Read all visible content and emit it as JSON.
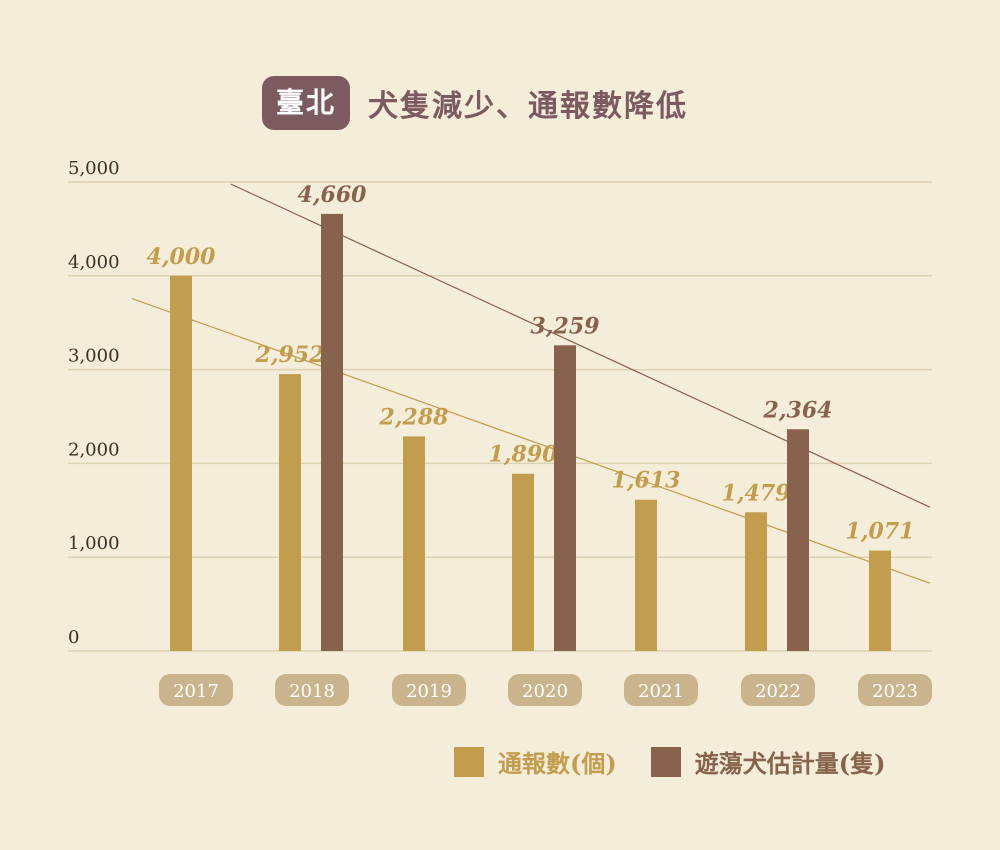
{
  "header": {
    "badge": "臺北",
    "title": "犬隻減少、通報數降低"
  },
  "colors": {
    "report": "#c29d4e",
    "stray": "#87624d",
    "grid": "#ddd2b3",
    "axis_text": "#3a3128",
    "year_pill": "#c9b48d"
  },
  "chart_data": {
    "type": "bar",
    "categories": [
      "2017",
      "2018",
      "2019",
      "2020",
      "2021",
      "2022",
      "2023"
    ],
    "ylim": [
      0,
      5000
    ],
    "yticks": [
      "0",
      "1,000",
      "2,000",
      "3,000",
      "4,000",
      "5,000"
    ],
    "series": [
      {
        "name": "通報數(個)",
        "values": [
          4000,
          2952,
          2288,
          1890,
          1613,
          1479,
          1071
        ],
        "labels": [
          "4,000",
          "2,952",
          "2,288",
          "1,890",
          "1,613",
          "1,479",
          "1,071"
        ]
      },
      {
        "name": "遊蕩犬估計量(隻)",
        "values": [
          null,
          4660,
          null,
          3259,
          null,
          2364,
          null
        ],
        "labels": [
          null,
          "4,660",
          null,
          "3,259",
          null,
          "2,364",
          null
        ]
      }
    ],
    "trendlines": true,
    "legend_position": "bottom-right",
    "grid": true
  }
}
